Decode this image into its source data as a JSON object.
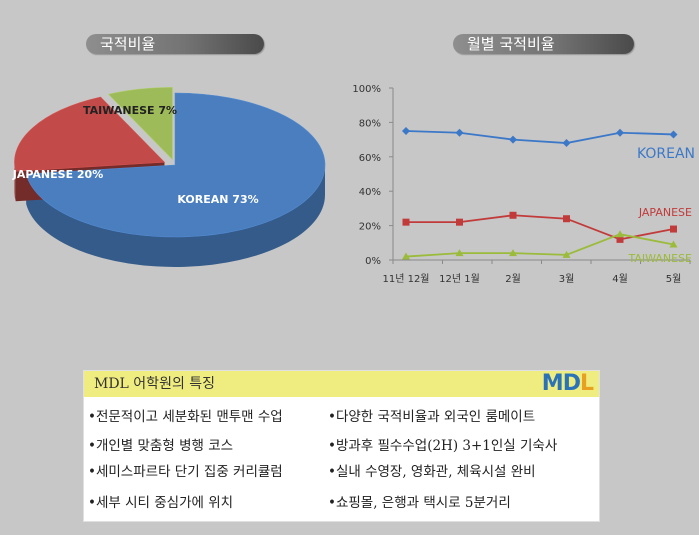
{
  "headers": {
    "pie_title": "국적비율",
    "line_title": "월별 국적비율"
  },
  "chart_data": [
    {
      "type": "pie",
      "title": "국적비율",
      "categories": [
        "KOREAN",
        "JAPANESE",
        "TAIWANESE"
      ],
      "values": [
        73,
        20,
        7
      ],
      "labels": [
        "KOREAN 73%",
        "JAPANESE 20%",
        "TAIWANESE 7%"
      ],
      "colors": [
        "#4a7ebf",
        "#c24a48",
        "#9dbb58"
      ]
    },
    {
      "type": "line",
      "title": "월별 국적비율",
      "categories": [
        "11년 12월",
        "12년 1월",
        "2월",
        "3월",
        "4월",
        "5월"
      ],
      "ylim": [
        0,
        100
      ],
      "yticks": [
        "0%",
        "20%",
        "40%",
        "60%",
        "80%",
        "100%"
      ],
      "grid": false,
      "series": [
        {
          "name": "KOREAN",
          "values": [
            75,
            74,
            70,
            68,
            74,
            73
          ],
          "color": "#3c78c8",
          "marker": "diamond"
        },
        {
          "name": "JAPANESE",
          "values": [
            22,
            22,
            26,
            24,
            12,
            18
          ],
          "color": "#c23b3b",
          "marker": "square"
        },
        {
          "name": "TAIWANESE",
          "values": [
            2,
            4,
            4,
            3,
            15,
            9
          ],
          "color": "#9bbb3a",
          "marker": "triangle"
        }
      ]
    }
  ],
  "features": {
    "title": "MDL 어학원의 특징",
    "logo": {
      "m": "M",
      "d": "D",
      "l": "L"
    },
    "left": [
      "•전문적이고 세분화된 맨투맨 수업",
      "•개인별 맞춤형 병행 코스",
      "•세미스파르타 단기 집중 커리큘럼",
      "•세부 시티 중심가에 위치"
    ],
    "right": [
      "•다양한 국적비율과 외국인 룸메이트",
      "•방과후 필수수업(2H) 3+1인실 기숙사",
      "•실내 수영장, 영화관, 체육시설 완비",
      "•쇼핑몰, 은행과 택시로  5분거리"
    ]
  }
}
